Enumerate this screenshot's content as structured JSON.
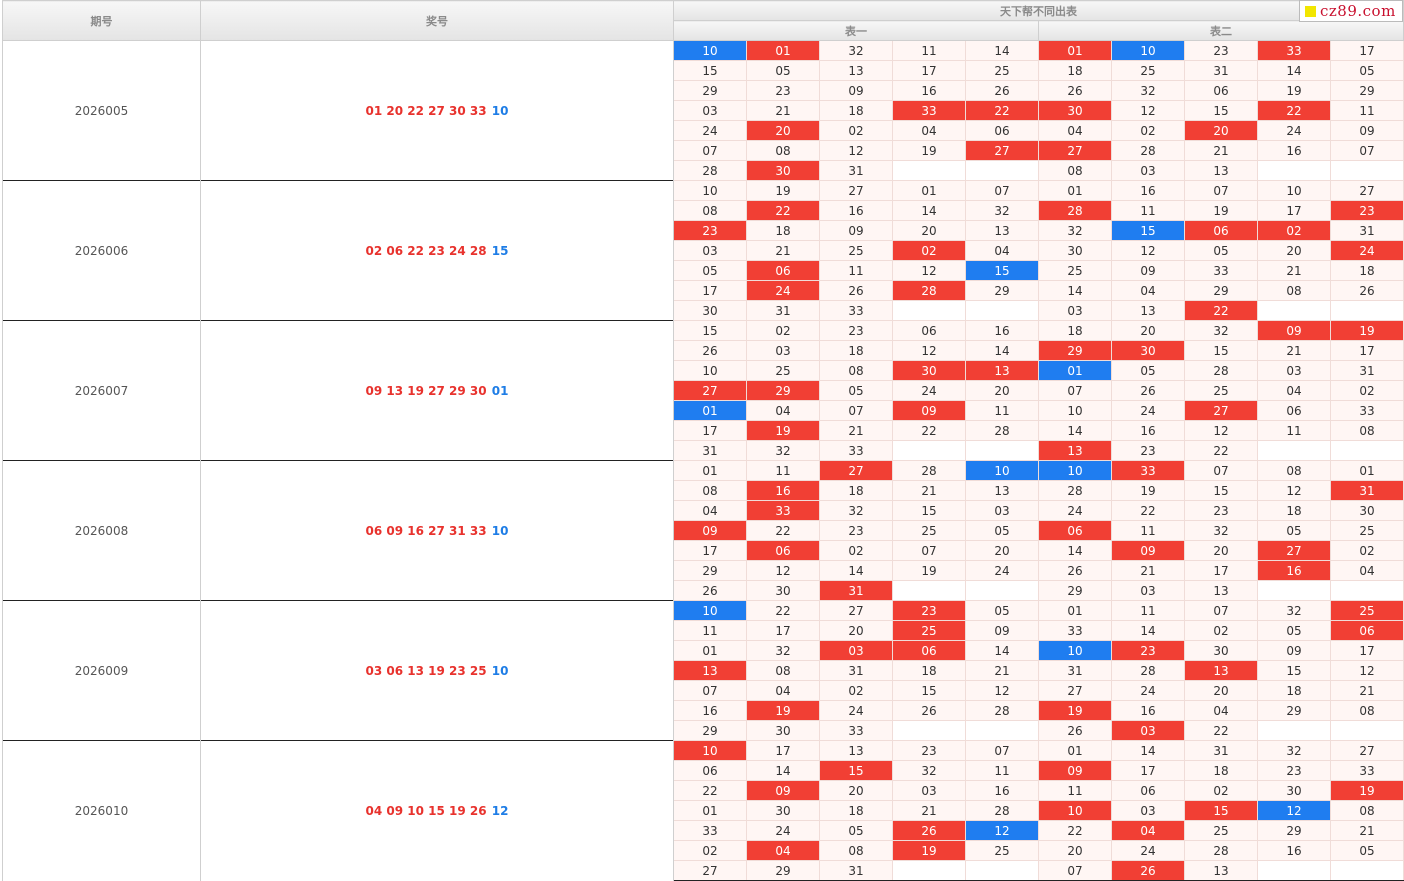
{
  "header": {
    "issue_label": "期号",
    "draw_label": "奖号",
    "group_title": "天下帮不同出表",
    "table1_label": "表一",
    "table2_label": "表二"
  },
  "watermark": {
    "text": "cz89.com",
    "square_color": "#f2e600",
    "text_color": "#c8102e"
  },
  "colors": {
    "red": "#f13f34",
    "blue": "#1f7df0",
    "cell_bg": "#fff6f4"
  },
  "legend": {
    "red_class": "red",
    "blue_class": "blue"
  },
  "periods": [
    {
      "issue": "2026005",
      "reds": "01 20 22 27 30 33",
      "blue": "10",
      "rows": [
        [
          "10b",
          "01r",
          "32",
          "11",
          "14",
          "01r",
          "10b",
          "23",
          "33r",
          "17"
        ],
        [
          "15",
          "05",
          "13",
          "17",
          "25",
          "18",
          "25",
          "31",
          "14",
          "05"
        ],
        [
          "29",
          "23",
          "09",
          "16",
          "26",
          "26",
          "32",
          "06",
          "19",
          "29"
        ],
        [
          "03",
          "21",
          "18",
          "33r",
          "22r",
          "30r",
          "12",
          "15",
          "22r",
          "11"
        ],
        [
          "24",
          "20r",
          "02",
          "04",
          "06",
          "04",
          "02",
          "20r",
          "24",
          "09"
        ],
        [
          "07",
          "08",
          "12",
          "19",
          "27r",
          "27r",
          "28",
          "21",
          "16",
          "07"
        ],
        [
          "28",
          "30r",
          "31",
          "",
          "",
          "08",
          "03",
          "13",
          "",
          ""
        ]
      ]
    },
    {
      "issue": "2026006",
      "reds": "02 06 22 23 24 28",
      "blue": "15",
      "rows": [
        [
          "10",
          "19",
          "27",
          "01",
          "07",
          "01",
          "16",
          "07",
          "10",
          "27"
        ],
        [
          "08",
          "22r",
          "16",
          "14",
          "32",
          "28r",
          "11",
          "19",
          "17",
          "23r"
        ],
        [
          "23r",
          "18",
          "09",
          "20",
          "13",
          "32",
          "15b",
          "06r",
          "02r",
          "31"
        ],
        [
          "03",
          "21",
          "25",
          "02r",
          "04",
          "30",
          "12",
          "05",
          "20",
          "24r"
        ],
        [
          "05",
          "06r",
          "11",
          "12",
          "15b",
          "25",
          "09",
          "33",
          "21",
          "18"
        ],
        [
          "17",
          "24r",
          "26",
          "28r",
          "29",
          "14",
          "04",
          "29",
          "08",
          "26"
        ],
        [
          "30",
          "31",
          "33",
          "",
          "",
          "03",
          "13",
          "22r",
          "",
          ""
        ]
      ]
    },
    {
      "issue": "2026007",
      "reds": "09 13 19 27 29 30",
      "blue": "01",
      "rows": [
        [
          "15",
          "02",
          "23",
          "06",
          "16",
          "18",
          "20",
          "32",
          "09r",
          "19r"
        ],
        [
          "26",
          "03",
          "18",
          "12",
          "14",
          "29r",
          "30r",
          "15",
          "21",
          "17"
        ],
        [
          "10",
          "25",
          "08",
          "30r",
          "13r",
          "01b",
          "05",
          "28",
          "03",
          "31"
        ],
        [
          "27r",
          "29r",
          "05",
          "24",
          "20",
          "07",
          "26",
          "25",
          "04",
          "02"
        ],
        [
          "01b",
          "04",
          "07",
          "09r",
          "11",
          "10",
          "24",
          "27r",
          "06",
          "33"
        ],
        [
          "17",
          "19r",
          "21",
          "22",
          "28",
          "14",
          "16",
          "12",
          "11",
          "08"
        ],
        [
          "31",
          "32",
          "33",
          "",
          "",
          "13r",
          "23",
          "22",
          "",
          ""
        ]
      ]
    },
    {
      "issue": "2026008",
      "reds": "06 09 16 27 31 33",
      "blue": "10",
      "rows": [
        [
          "01",
          "11",
          "27r",
          "28",
          "10b",
          "10b",
          "33r",
          "07",
          "08",
          "01"
        ],
        [
          "08",
          "16r",
          "18",
          "21",
          "13",
          "28",
          "19",
          "15",
          "12",
          "31r"
        ],
        [
          "04",
          "33r",
          "32",
          "15",
          "03",
          "24",
          "22",
          "23",
          "18",
          "30"
        ],
        [
          "09r",
          "22",
          "23",
          "25",
          "05",
          "06r",
          "11",
          "32",
          "05",
          "25"
        ],
        [
          "17",
          "06r",
          "02",
          "07",
          "20",
          "14",
          "09r",
          "20",
          "27r",
          "02"
        ],
        [
          "29",
          "12",
          "14",
          "19",
          "24",
          "26",
          "21",
          "17",
          "16r",
          "04"
        ],
        [
          "26",
          "30",
          "31r",
          "",
          "",
          "29",
          "03",
          "13",
          "",
          ""
        ]
      ]
    },
    {
      "issue": "2026009",
      "reds": "03 06 13 19 23 25",
      "blue": "10",
      "rows": [
        [
          "10b",
          "22",
          "27",
          "23r",
          "05",
          "01",
          "11",
          "07",
          "32",
          "25r"
        ],
        [
          "11",
          "17",
          "20",
          "25r",
          "09",
          "33",
          "14",
          "02",
          "05",
          "06r"
        ],
        [
          "01",
          "32",
          "03r",
          "06r",
          "14",
          "10b",
          "23r",
          "30",
          "09",
          "17"
        ],
        [
          "13r",
          "08",
          "31",
          "18",
          "21",
          "31",
          "28",
          "13r",
          "15",
          "12"
        ],
        [
          "07",
          "04",
          "02",
          "15",
          "12",
          "27",
          "24",
          "20",
          "18",
          "21"
        ],
        [
          "16",
          "19r",
          "24",
          "26",
          "28",
          "19r",
          "16",
          "04",
          "29",
          "08"
        ],
        [
          "29",
          "30",
          "33",
          "",
          "",
          "26",
          "03r",
          "22",
          "",
          ""
        ]
      ]
    },
    {
      "issue": "2026010",
      "reds": "04 09 10 15 19 26",
      "blue": "12",
      "rows": [
        [
          "10r",
          "17",
          "13",
          "23",
          "07",
          "01",
          "14",
          "31",
          "32",
          "27"
        ],
        [
          "06",
          "14",
          "15r",
          "32",
          "11",
          "09r",
          "17",
          "18",
          "23",
          "33"
        ],
        [
          "22",
          "09r",
          "20",
          "03",
          "16",
          "11",
          "06",
          "02",
          "30",
          "19r"
        ],
        [
          "01",
          "30",
          "18",
          "21",
          "28",
          "10r",
          "03",
          "15r",
          "12b",
          "08"
        ],
        [
          "33",
          "24",
          "05",
          "26r",
          "12b",
          "22",
          "04r",
          "25",
          "29",
          "21"
        ],
        [
          "02",
          "04r",
          "08",
          "19r",
          "25",
          "20",
          "24",
          "28",
          "16",
          "05"
        ],
        [
          "27",
          "29",
          "31",
          "",
          "",
          "07",
          "26r",
          "13",
          "",
          ""
        ]
      ]
    }
  ]
}
